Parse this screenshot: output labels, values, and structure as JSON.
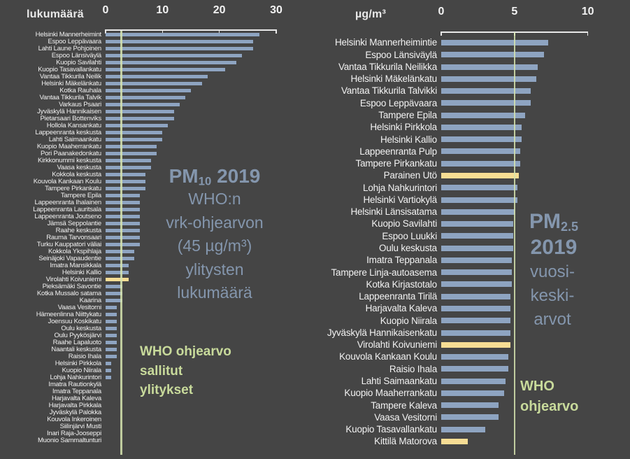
{
  "page": {
    "background": "#454545"
  },
  "colors": {
    "bar": "#8ea4c1",
    "highlight_bar": "#f7dd94",
    "guideline": "#d6e4af",
    "axis": "#e8e8e8",
    "row_labels": "#f2f2f2",
    "center_text": "#8496ad",
    "note_text": "#c8da9b"
  },
  "chart_data": [
    {
      "type": "bar",
      "orientation": "horizontal",
      "unit_label": "lukumäärä",
      "x_ticks": [
        0,
        10,
        20,
        30
      ],
      "xlim": [
        0,
        30
      ],
      "grid": false,
      "legend": false,
      "guideline": {
        "value": 3,
        "label_lines": [
          "WHO ohjearvo",
          "sallitut",
          "ylitykset"
        ]
      },
      "center_text": {
        "heading_lines": [
          {
            "pre": "PM",
            "sub": "10",
            "post": " 2019"
          }
        ],
        "body_lines": [
          "WHO:n",
          "vrk-ohjearvon",
          "(45 µg/m³)",
          "ylitysten",
          "lukumäärä"
        ]
      },
      "categories": [
        "Helsinki Mannerheimint",
        "Espoo Leppävaara",
        "Lahti Laune Pohjoinen",
        "Espoo Länsiväylä",
        "Kuopio Savilahti",
        "Kuopio Tasavallankatu",
        "Vantaa Tikkurila Neilik",
        "Helsinki Mäkelänkatu",
        "Kotka Rauhala",
        "Vantaa Tikkurila Talvik",
        "Varkaus Psaari",
        "Jyväskylä Hannikaisen",
        "Pietarsaari Bottenviks",
        "Hollola Kansankatu",
        "Lappeenranta keskusta",
        "Lahti Saimaankatu",
        "Kuopio Maaherrankatu",
        "Pori Paanakedonkatu",
        "Kirkkonummi keskusta",
        "Vaasa keskusta",
        "Kokkola keskusta",
        "Kouvola Kankaan Koulu",
        "Tampere Pirkankatu",
        "Tampere Epila",
        "Lappeenranta Ihalainen",
        "Lappeenranta Lauritsala",
        "Lappeenranta Joutseno",
        "Jämsä Seppolantie",
        "Raahe keskusta",
        "Rauma Tarvonsaari",
        "Turku Kauppatori väliai",
        "Kokkola Ykspihlaja",
        "Seinäjoki Vapaudentie",
        "Imatra Mansikkala",
        "Helsinki Kallio",
        "Virolahti Koivuniemi",
        "Pieksämäki Savontie",
        "Kotka Mussalo satama",
        "Kaarina",
        "Vaasa Vesitorni",
        "Hämeenlinna Niittykatu",
        "Joensuu Koskikatu",
        "Oulu keskusta",
        "Oulu Pyykösjärvi",
        "Raahe Lapaluoto",
        "Naantali keskusta",
        "Raisio Ihala",
        "Helsinki Pirkkola",
        "Kuopio Niirala",
        "Lohja Nahkurintori",
        "Imatra Rautionkylä",
        "Imatra Teppanala",
        "Harjavalta Kaleva",
        "Harjavalta Pirkkala",
        "Jyväskylä Palokka",
        "Kouvola Inkeroinen",
        "Siilinjärvi Musti",
        "Inari Raja-Jooseppi",
        "Muonio Sammaltunturi"
      ],
      "values": [
        27,
        26,
        26,
        24,
        23,
        21,
        18,
        17,
        15,
        14,
        13,
        12,
        12,
        11,
        10,
        10,
        9,
        9,
        8,
        8,
        7,
        7,
        7,
        6,
        6,
        6,
        6,
        6,
        6,
        6,
        6,
        5,
        5,
        4,
        4,
        4,
        3,
        3,
        3,
        2,
        2,
        2,
        2,
        2,
        2,
        2,
        2,
        1,
        1,
        1,
        0,
        0,
        0,
        0,
        0,
        0,
        0,
        0,
        0
      ],
      "highlighted": [
        "Virolahti Koivuniemi"
      ]
    },
    {
      "type": "bar",
      "orientation": "horizontal",
      "unit_label": "µg/m³",
      "x_ticks": [
        0,
        5,
        10
      ],
      "xlim": [
        0,
        10
      ],
      "grid": false,
      "legend": false,
      "guideline": {
        "value": 5,
        "label_lines": [
          "WHO",
          "ohjearvo"
        ]
      },
      "center_text": {
        "heading_lines": [
          {
            "pre": "PM",
            "sub": "2.5",
            "post": ""
          },
          {
            "pre": "2019",
            "sub": "",
            "post": ""
          }
        ],
        "body_lines": [
          "vuosi-",
          "keski-",
          "arvot"
        ]
      },
      "categories": [
        "Helsinki Mannerheimintie",
        "Espoo Länsiväylä",
        "Vantaa Tikkurila Neilikka",
        "Helsinki Mäkelänkatu",
        "Vantaa Tikkurila Talvikki",
        "Espoo Leppävaara",
        "Tampere Epila",
        "Helsinki Pirkkola",
        "Helsinki Kallio",
        "Lappeenranta Pulp",
        "Tampere Pirkankatu",
        "Parainen Utö",
        "Lohja Nahkurintori",
        "Helsinki Vartiokylä",
        "Helsinki Länsisatama",
        "Kuopio Savilahti",
        "Espoo Luukki",
        "Oulu keskusta",
        "Imatra Teppanala",
        "Tampere Linja-autoasema",
        "Kotka Kirjastotalo",
        "Lappeenranta Tirilä",
        "Harjavalta Kaleva",
        "Kuopio Niirala",
        "Jyväskylä Hannikaisenkatu",
        "Virolahti Koivuniemi",
        "Kouvola Kankaan Koulu",
        "Raisio Ihala",
        "Lahti Saimaankatu",
        "Kuopio Maaherrankatu",
        "Tampere Kaleva",
        "Vaasa Vesitorni",
        "Kuopio Tasavallankatu",
        "Kittilä Matorova"
      ],
      "values": [
        7.3,
        7.0,
        6.6,
        6.5,
        6.1,
        6.1,
        5.7,
        5.5,
        5.5,
        5.4,
        5.4,
        5.3,
        5.2,
        5.2,
        5.0,
        4.9,
        4.9,
        4.9,
        4.8,
        4.8,
        4.8,
        4.7,
        4.7,
        4.7,
        4.7,
        4.7,
        4.6,
        4.6,
        4.4,
        4.3,
        3.9,
        3.9,
        3.0,
        1.8
      ],
      "highlighted": [
        "Parainen Utö",
        "Virolahti Koivuniemi",
        "Kittilä Matorova"
      ]
    }
  ]
}
